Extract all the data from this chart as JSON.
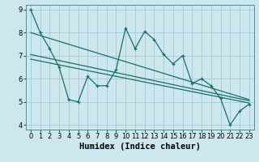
{
  "xlabel": "Humidex (Indice chaleur)",
  "bg_color": "#cce8ee",
  "grid_color": "#aacdd6",
  "line_color": "#1a6e65",
  "xlim": [
    -0.5,
    23.5
  ],
  "ylim": [
    3.8,
    9.2
  ],
  "yticks": [
    4,
    5,
    6,
    7,
    8,
    9
  ],
  "xticks": [
    0,
    1,
    2,
    3,
    4,
    5,
    6,
    7,
    8,
    9,
    10,
    11,
    12,
    13,
    14,
    15,
    16,
    17,
    18,
    19,
    20,
    21,
    22,
    23
  ],
  "main_x": [
    0,
    1,
    2,
    3,
    4,
    5,
    6,
    7,
    8,
    9,
    10,
    11,
    12,
    13,
    14,
    15,
    16,
    17,
    18,
    19,
    20,
    21,
    22,
    23
  ],
  "main_y": [
    9.0,
    8.0,
    7.3,
    6.5,
    5.1,
    5.0,
    6.1,
    5.7,
    5.7,
    6.4,
    8.2,
    7.3,
    8.05,
    7.7,
    7.05,
    6.65,
    7.0,
    5.8,
    6.0,
    5.7,
    5.15,
    4.0,
    4.6,
    4.9
  ],
  "reg_line1_x": [
    0,
    23
  ],
  "reg_line1_y": [
    8.0,
    5.1
  ],
  "reg_line2_x": [
    0,
    23
  ],
  "reg_line2_y": [
    7.05,
    5.05
  ],
  "reg_line3_x": [
    0,
    23
  ],
  "reg_line3_y": [
    6.85,
    4.95
  ],
  "tick_fontsize": 6.0,
  "xlabel_fontsize": 7.5
}
